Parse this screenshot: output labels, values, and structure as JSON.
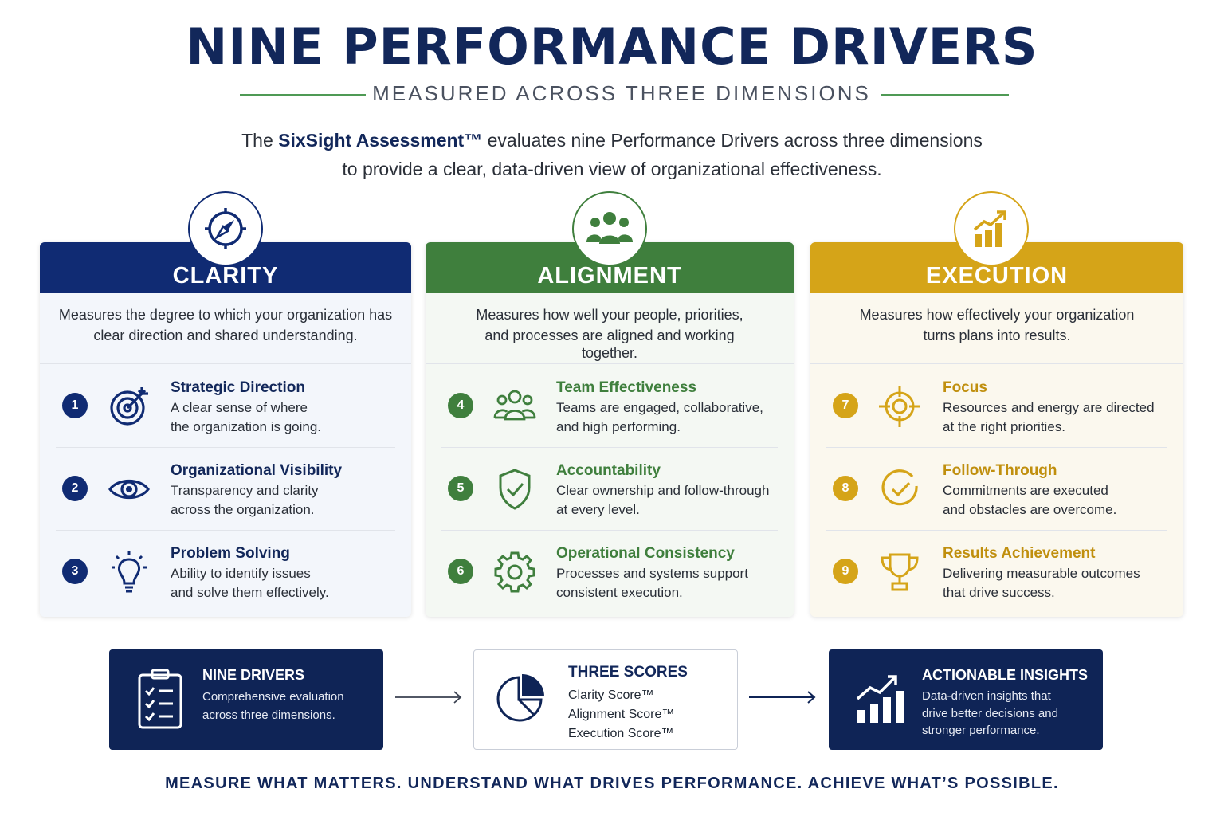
{
  "header": {
    "title": "NINE PERFORMANCE DRIVERS",
    "subtitle": "MEASURED ACROSS THREE DIMENSIONS",
    "intro_prefix": "The ",
    "intro_brand": "SixSight Assessment™",
    "intro_rest_line1": " evaluates nine Performance Drivers across three dimensions",
    "intro_line2": "to provide a clear, data-driven view of organizational effectiveness."
  },
  "colors": {
    "navy": "#102b73",
    "green": "#3f7f3d",
    "gold": "#d5a418"
  },
  "dimensions": [
    {
      "name": "CLARITY",
      "icon": "compass-icon",
      "description": "Measures the degree to which your organization has clear direction and shared understanding.",
      "drivers": [
        {
          "number": "1",
          "name": "Strategic Direction",
          "icon": "target-icon",
          "line1": "A clear sense of where",
          "line2": "the organization is going."
        },
        {
          "number": "2",
          "name": "Organizational Visibility",
          "icon": "eye-icon",
          "line1": "Transparency and clarity",
          "line2": "across the organization."
        },
        {
          "number": "3",
          "name": "Problem Solving",
          "icon": "lightbulb-icon",
          "line1": "Ability to identify issues",
          "line2": "and solve them effectively."
        }
      ]
    },
    {
      "name": "ALIGNMENT",
      "icon": "people-group-icon",
      "description_line1": "Measures how well your people, priorities,",
      "description_line2": "and processes are aligned and working",
      "description_line3": "together.",
      "drivers": [
        {
          "number": "4",
          "name": "Team Effectiveness",
          "icon": "team-icon",
          "line1": "Teams are engaged, collaborative,",
          "line2": "and high performing."
        },
        {
          "number": "5",
          "name": "Accountability",
          "icon": "shield-check-icon",
          "line1": "Clear ownership and follow-through",
          "line2": "at every level."
        },
        {
          "number": "6",
          "name": "Operational Consistency",
          "icon": "gear-icon",
          "line1": "Processes and systems support",
          "line2": "consistent execution."
        }
      ]
    },
    {
      "name": "EXECUTION",
      "icon": "bar-chart-growth-icon",
      "description": "Measures how effectively your organization turns plans into results.",
      "drivers": [
        {
          "number": "7",
          "name": "Focus",
          "icon": "crosshair-icon",
          "line1": "Resources and energy are directed",
          "line2": "at the right priorities."
        },
        {
          "number": "8",
          "name": "Follow-Through",
          "icon": "check-circle-icon",
          "line1": "Commitments are executed",
          "line2": "and obstacles are overcome."
        },
        {
          "number": "9",
          "name": "Results Achievement",
          "icon": "trophy-icon",
          "line1": "Delivering measurable outcomes",
          "line2": "that drive success."
        }
      ]
    }
  ],
  "summary": {
    "drivers": {
      "heading": "NINE DRIVERS",
      "line1": "Comprehensive evaluation",
      "line2": "across three dimensions.",
      "icon": "clipboard-checklist-icon"
    },
    "scores": {
      "heading": "THREE SCORES",
      "line1": "Clarity Score™",
      "line2": "Alignment Score™",
      "line3": "Execution Score™",
      "icon": "pie-chart-icon"
    },
    "insights": {
      "heading": "ACTIONABLE INSIGHTS",
      "line1": "Data-driven insights that",
      "line2": "drive better decisions and",
      "line3": "stronger performance.",
      "icon": "growth-chart-icon"
    }
  },
  "tagline": "MEASURE WHAT MATTERS. UNDERSTAND WHAT DRIVES PERFORMANCE. ACHIEVE WHAT’S POSSIBLE."
}
